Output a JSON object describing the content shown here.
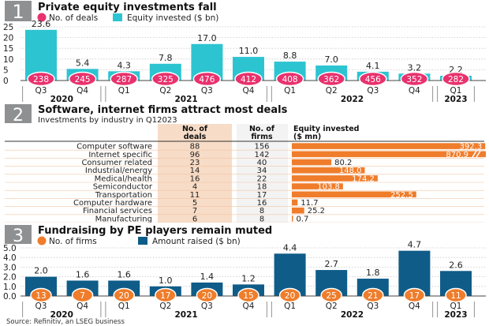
{
  "source": "Source: Refinitiv, an LSEG business",
  "colors": {
    "cyan": "#2dc4d1",
    "pink": "#e8326e",
    "orange": "#ef7d2b",
    "navy": "#0f5c88",
    "grey": "#8f9092",
    "peach": "#f7dcc7",
    "rowline": "#f2c4a3"
  },
  "panel1": {
    "num": "1",
    "title": "Private equity investments fall",
    "legend_deals": "No. of deals",
    "legend_equity": "Equity invested ($ bn)"
  },
  "panel2": {
    "num": "2",
    "title": "Software, internet firms attract most deals",
    "subtitle": "Investments by industry in Q12023",
    "col_deals": [
      "No. of",
      "deals"
    ],
    "col_firms": [
      "No. of",
      "firms"
    ],
    "col_equity": [
      "Equity invested",
      "($ mn)"
    ]
  },
  "panel3": {
    "num": "3",
    "title": "Fundraising by PE players remain muted",
    "legend_firms": "No. of firms",
    "legend_amount": "Amount raised ($ bn)"
  },
  "chart_data": [
    {
      "type": "bar",
      "title": "Private equity investments fall",
      "categories": [
        "Q3 2020",
        "Q4 2020",
        "Q1 2021",
        "Q2 2021",
        "Q3 2021",
        "Q4 2021",
        "Q1 2022",
        "Q2 2022",
        "Q3 2022",
        "Q4 2022",
        "Q1 2023"
      ],
      "quarters": [
        "Q3",
        "Q4",
        "Q1",
        "Q2",
        "Q3",
        "Q4",
        "Q1",
        "Q2",
        "Q3",
        "Q4",
        "Q1"
      ],
      "years": [
        {
          "label": "2020",
          "from": 0,
          "to": 1
        },
        {
          "label": "2021",
          "from": 2,
          "to": 5
        },
        {
          "label": "2022",
          "from": 6,
          "to": 9
        },
        {
          "label": "2023",
          "from": 10,
          "to": 10
        }
      ],
      "yticks": [
        0,
        5,
        10,
        15,
        20,
        25
      ],
      "ylim": [
        0,
        25
      ],
      "series": [
        {
          "name": "Equity invested ($ bn)",
          "values": [
            23.6,
            5.4,
            4.3,
            7.8,
            17.0,
            11.0,
            8.8,
            7.0,
            4.1,
            3.2,
            2.2
          ],
          "labels": [
            "23.6",
            "5.4",
            "4.3",
            "7.8",
            "17.0",
            "11.0",
            "8.8",
            "7.0",
            "4.1",
            "3.2",
            "2.2"
          ]
        },
        {
          "name": "No. of deals",
          "values": [
            238,
            245,
            287,
            325,
            476,
            412,
            408,
            362,
            456,
            352,
            282
          ],
          "labels": [
            "238",
            "245",
            "287",
            "325",
            "476",
            "412",
            "408",
            "362",
            "456",
            "352",
            "282"
          ]
        }
      ]
    },
    {
      "type": "table",
      "title": "Software, internet firms attract most deals",
      "rows": [
        {
          "industry": "Computer software",
          "deals": "88",
          "firms": "156",
          "equity": 392.3,
          "equity_label": "392.3"
        },
        {
          "industry": "Internet specific",
          "deals": "96",
          "firms": "142",
          "equity": 870.9,
          "equity_label": "870.9",
          "broken": true
        },
        {
          "industry": "Consumer related",
          "deals": "23",
          "firms": "40",
          "equity": 80.2,
          "equity_label": "80.2"
        },
        {
          "industry": "Industrial/energy",
          "deals": "14",
          "firms": "34",
          "equity": 148.0,
          "equity_label": "148.0"
        },
        {
          "industry": "Medical/health",
          "deals": "16",
          "firms": "22",
          "equity": 174.2,
          "equity_label": "174.2"
        },
        {
          "industry": "Semiconductor",
          "deals": "4",
          "firms": "18",
          "equity": 103.8,
          "equity_label": "103.8"
        },
        {
          "industry": "Transportation",
          "deals": "11",
          "firms": "17",
          "equity": 252.5,
          "equity_label": "252.5"
        },
        {
          "industry": "Computer hardware",
          "deals": "5",
          "firms": "16",
          "equity": 11.7,
          "equity_label": "11.7"
        },
        {
          "industry": "Financial services",
          "deals": "7",
          "firms": "8",
          "equity": 25.2,
          "equity_label": "25.2"
        },
        {
          "industry": "Manufacturing",
          "deals": "6",
          "firms": "8",
          "equity": 0.7,
          "equity_label": "0.7"
        }
      ]
    },
    {
      "type": "bar",
      "title": "Fundraising by PE players remain muted",
      "categories": [
        "Q3 2020",
        "Q4 2020",
        "Q1 2021",
        "Q2 2021",
        "Q3 2021",
        "Q4 2021",
        "Q1 2022",
        "Q2 2022",
        "Q3 2022",
        "Q4 2022",
        "Q1 2023"
      ],
      "quarters": [
        "Q3",
        "Q4",
        "Q1",
        "Q2",
        "Q3",
        "Q4",
        "Q1",
        "Q2",
        "Q3",
        "Q4",
        "Q1"
      ],
      "years": [
        {
          "label": "2020",
          "from": 0,
          "to": 1
        },
        {
          "label": "2021",
          "from": 2,
          "to": 5
        },
        {
          "label": "2022",
          "from": 6,
          "to": 9
        },
        {
          "label": "2023",
          "from": 10,
          "to": 10
        }
      ],
      "yticks": [
        "0.0",
        "1.0",
        "2.0",
        "3.0",
        "4.0",
        "5.0"
      ],
      "ylim": [
        0,
        5
      ],
      "series": [
        {
          "name": "Amount raised ($ bn)",
          "values": [
            2.0,
            1.6,
            1.6,
            1.0,
            1.4,
            1.2,
            4.4,
            2.7,
            1.8,
            4.7,
            2.6
          ],
          "labels": [
            "2.0",
            "1.6",
            "1.6",
            "1.0",
            "1.4",
            "1.2",
            "4.4",
            "2.7",
            "1.8",
            "4.7",
            "2.6"
          ]
        },
        {
          "name": "No. of firms",
          "values": [
            13,
            7,
            20,
            17,
            20,
            15,
            20,
            25,
            21,
            17,
            11
          ],
          "labels": [
            "13",
            "7",
            "20",
            "17",
            "20",
            "15",
            "20",
            "25",
            "21",
            "17",
            "11"
          ]
        }
      ]
    }
  ]
}
